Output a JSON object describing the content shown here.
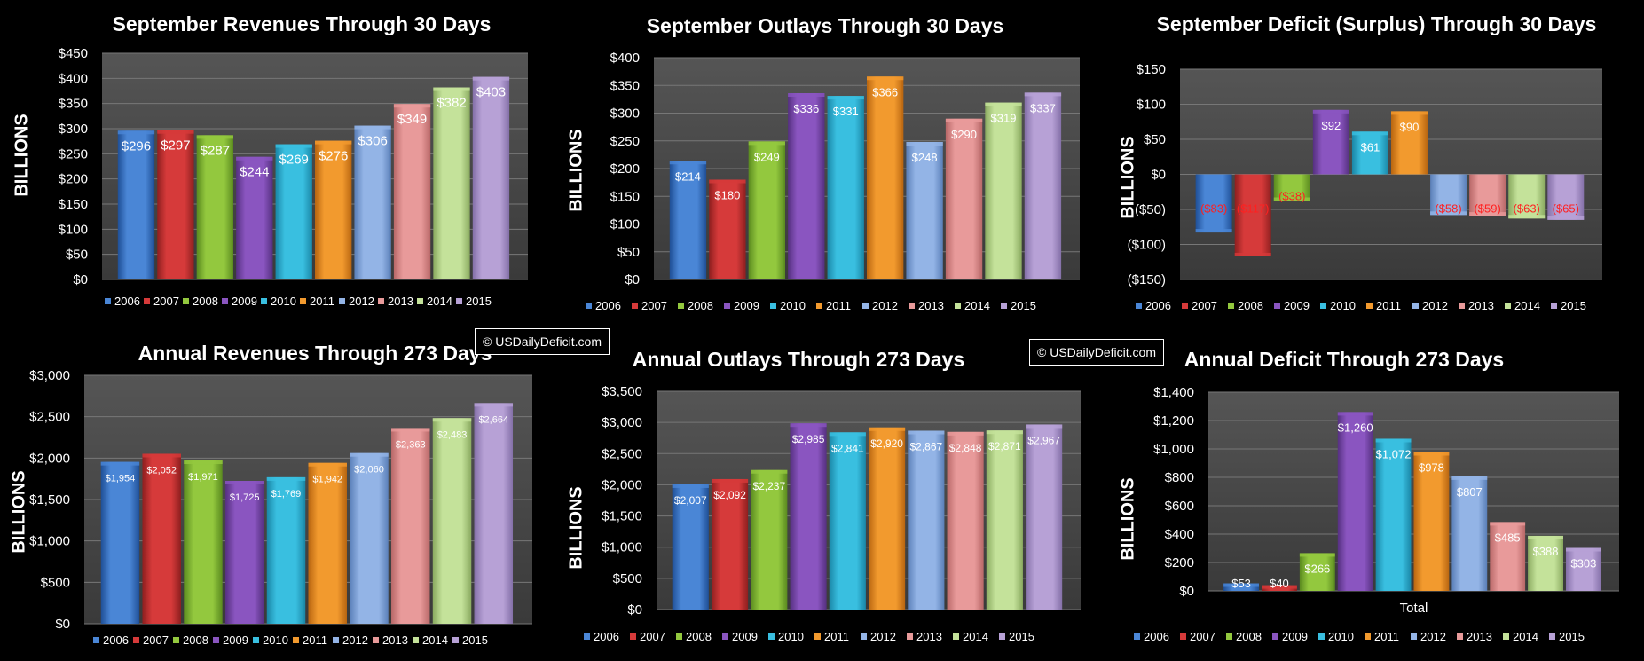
{
  "colors": [
    "#4a86d6",
    "#d63a3a",
    "#93c83e",
    "#8a55c0",
    "#39bfe0",
    "#f29a2e",
    "#93b4e6",
    "#e89a9a",
    "#c4e29a",
    "#b7a1d6"
  ],
  "colors_dark": [
    "#1f4f96",
    "#8e1f1f",
    "#5a8a1f",
    "#553080",
    "#1a86a6",
    "#b86510",
    "#5a7fb8",
    "#b86868",
    "#8aaa60",
    "#8470a8"
  ],
  "legend_labels": [
    "2006",
    "2007",
    "2008",
    "2009",
    "2010",
    "2011",
    "2012",
    "2013",
    "2014",
    "2015"
  ],
  "watermarks": [
    "© USDailyDeficit.com",
    "© USDailyDeficit.com"
  ],
  "chart_data": [
    {
      "id": "sep-rev",
      "type": "bar",
      "title": "September Revenues Through 30 Days",
      "ylabel": "BILLIONS",
      "categories": [
        "2006",
        "2007",
        "2008",
        "2009",
        "2010",
        "2011",
        "2012",
        "2013",
        "2014",
        "2015"
      ],
      "values": [
        296,
        297,
        287,
        244,
        269,
        276,
        306,
        349,
        382,
        403
      ],
      "data_labels": [
        "$296",
        "$297",
        "$287",
        "$244",
        "$269",
        "$276",
        "$306",
        "$349",
        "$382",
        "$403"
      ],
      "ylim": [
        0,
        450
      ],
      "yticks": [
        0,
        50,
        100,
        150,
        200,
        250,
        300,
        350,
        400,
        450
      ],
      "ytick_labels": [
        "$0",
        "$50",
        "$100",
        "$150",
        "$200",
        "$250",
        "$300",
        "$350",
        "$400",
        "$450"
      ],
      "legend": "bottom",
      "grid": true
    },
    {
      "id": "sep-out",
      "type": "bar",
      "title": "September Outlays Through 30 Days",
      "ylabel": "BILLIONS",
      "categories": [
        "2006",
        "2007",
        "2008",
        "2009",
        "2010",
        "2011",
        "2012",
        "2013",
        "2014",
        "2015"
      ],
      "values": [
        214,
        180,
        249,
        336,
        331,
        366,
        248,
        290,
        319,
        337
      ],
      "data_labels": [
        "$214",
        "$180",
        "$249",
        "$336",
        "$331",
        "$366",
        "$248",
        "$290",
        "$319",
        "$337"
      ],
      "ylim": [
        0,
        400
      ],
      "yticks": [
        0,
        50,
        100,
        150,
        200,
        250,
        300,
        350,
        400
      ],
      "ytick_labels": [
        "$0",
        "$50",
        "$100",
        "$150",
        "$200",
        "$250",
        "$300",
        "$350",
        "$400"
      ],
      "legend": "bottom",
      "grid": true
    },
    {
      "id": "sep-def",
      "type": "bar",
      "title": "September Deficit (Surplus) Through 30 Days",
      "ylabel": "BILLIONS",
      "categories": [
        "2006",
        "2007",
        "2008",
        "2009",
        "2010",
        "2011",
        "2012",
        "2013",
        "2014",
        "2015"
      ],
      "values": [
        -83,
        -117,
        -38,
        92,
        61,
        90,
        -58,
        -59,
        -63,
        -65
      ],
      "data_labels": [
        "($83)",
        "($117)",
        "($38)",
        "$92",
        "$61",
        "$90",
        "($58)",
        "($59)",
        "($63)",
        "($65)"
      ],
      "ylim": [
        -150,
        150
      ],
      "yticks": [
        -150,
        -100,
        -50,
        0,
        50,
        100,
        150
      ],
      "ytick_labels": [
        "($150)",
        "($100)",
        "($50)",
        "$0",
        "$50",
        "$100",
        "$150"
      ],
      "legend": "bottom",
      "grid": true
    },
    {
      "id": "ann-rev",
      "type": "bar",
      "title": "Annual Revenues Through 273 Days",
      "ylabel": "BILLIONS",
      "categories": [
        "2006",
        "2007",
        "2008",
        "2009",
        "2010",
        "2011",
        "2012",
        "2013",
        "2014",
        "2015"
      ],
      "values": [
        1954,
        2052,
        1971,
        1725,
        1769,
        1942,
        2060,
        2363,
        2483,
        2664
      ],
      "data_labels": [
        "$1,954",
        "$2,052",
        "$1,971",
        "$1,725",
        "$1,769",
        "$1,942",
        "$2,060",
        "$2,363",
        "$2,483",
        "$2,664"
      ],
      "ylim": [
        0,
        3000
      ],
      "yticks": [
        0,
        500,
        1000,
        1500,
        2000,
        2500,
        3000
      ],
      "ytick_labels": [
        "$0",
        "$500",
        "$1,000",
        "$1,500",
        "$2,000",
        "$2,500",
        "$3,000"
      ],
      "legend": "bottom",
      "grid": true
    },
    {
      "id": "ann-out",
      "type": "bar",
      "title": "Annual Outlays Through 273 Days",
      "ylabel": "BILLIONS",
      "categories": [
        "2006",
        "2007",
        "2008",
        "2009",
        "2010",
        "2011",
        "2012",
        "2013",
        "2014",
        "2015"
      ],
      "values": [
        2007,
        2092,
        2237,
        2985,
        2841,
        2920,
        2867,
        2848,
        2871,
        2967
      ],
      "data_labels": [
        "$2,007",
        "$2,092",
        "$2,237",
        "$2,985",
        "$2,841",
        "$2,920",
        "$2,867",
        "$2,848",
        "$2,871",
        "$2,967"
      ],
      "ylim": [
        0,
        3500
      ],
      "yticks": [
        0,
        500,
        1000,
        1500,
        2000,
        2500,
        3000,
        3500
      ],
      "ytick_labels": [
        "$0",
        "$500",
        "$1,000",
        "$1,500",
        "$2,000",
        "$2,500",
        "$3,000",
        "$3,500"
      ],
      "legend": "bottom",
      "grid": true
    },
    {
      "id": "ann-def",
      "type": "bar",
      "title": "Annual Deficit Through 273 Days",
      "ylabel": "BILLIONS",
      "xlabel": "Total",
      "categories": [
        "2006",
        "2007",
        "2008",
        "2009",
        "2010",
        "2011",
        "2012",
        "2013",
        "2014",
        "2015"
      ],
      "values": [
        53,
        40,
        266,
        1260,
        1072,
        978,
        807,
        485,
        388,
        303
      ],
      "data_labels": [
        "$53",
        "$40",
        "$266",
        "$1,260",
        "$1,072",
        "$978",
        "$807",
        "$485",
        "$388",
        "$303"
      ],
      "ylim": [
        0,
        1400
      ],
      "yticks": [
        0,
        200,
        400,
        600,
        800,
        1000,
        1200,
        1400
      ],
      "ytick_labels": [
        "$0",
        "$200",
        "$400",
        "$600",
        "$800",
        "$1,000",
        "$1,200",
        "$1,400"
      ],
      "legend": "bottom",
      "grid": true
    }
  ]
}
